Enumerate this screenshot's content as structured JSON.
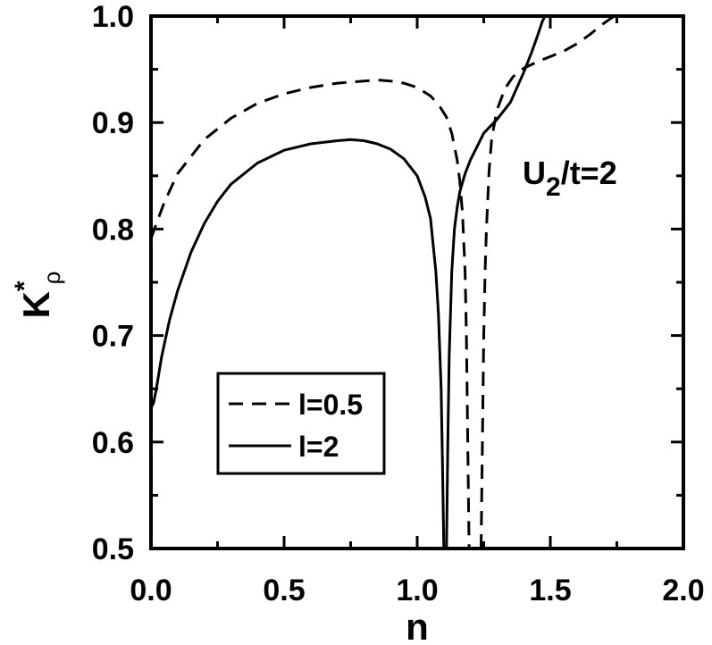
{
  "chart_data": {
    "type": "line",
    "xlabel": "n",
    "ylabel": {
      "main": "K",
      "superscript": "*",
      "subscript": "ρ"
    },
    "xlim": [
      0.0,
      2.0
    ],
    "ylim": [
      0.5,
      1.0
    ],
    "xticks": [
      "0.0",
      "0.5",
      "1.0",
      "1.5",
      "2.0"
    ],
    "yticks": [
      "0.5",
      "0.6",
      "0.7",
      "0.8",
      "0.9",
      "1.0"
    ],
    "xtick_values": [
      0.0,
      0.5,
      1.0,
      1.5,
      2.0
    ],
    "ytick_values": [
      0.5,
      0.6,
      0.7,
      0.8,
      0.9,
      1.0
    ],
    "annotation": {
      "main": "U",
      "subscript": "2",
      "rest": "/t=2"
    },
    "legend_position": "lower-left",
    "grid": false,
    "series": [
      {
        "name": "l=0.5",
        "style": "dashed",
        "color": "#000000",
        "segments": [
          {
            "x": [
              0.0,
              0.02,
              0.05,
              0.1,
              0.2,
              0.3,
              0.4,
              0.5,
              0.6,
              0.7,
              0.8,
              0.85,
              0.9,
              0.95,
              1.0,
              1.05,
              1.08,
              1.11,
              1.13,
              1.15,
              1.16,
              1.17,
              1.18,
              1.185,
              1.19,
              1.195
            ],
            "y": [
              0.791,
              0.805,
              0.825,
              0.852,
              0.884,
              0.904,
              0.918,
              0.927,
              0.933,
              0.937,
              0.939,
              0.94,
              0.939,
              0.937,
              0.933,
              0.925,
              0.917,
              0.905,
              0.89,
              0.865,
              0.845,
              0.815,
              0.76,
              0.7,
              0.6,
              0.5
            ]
          },
          {
            "x": [
              1.24,
              1.245,
              1.25,
              1.255,
              1.26,
              1.27,
              1.28,
              1.3,
              1.33,
              1.36,
              1.4,
              1.45,
              1.5,
              1.55,
              1.6,
              1.65,
              1.7,
              1.74
            ],
            "y": [
              0.5,
              0.6,
              0.7,
              0.76,
              0.8,
              0.855,
              0.885,
              0.912,
              0.932,
              0.943,
              0.951,
              0.957,
              0.962,
              0.967,
              0.974,
              0.983,
              0.993,
              1.0
            ]
          }
        ]
      },
      {
        "name": "l=2",
        "style": "solid",
        "color": "#000000",
        "segments": [
          {
            "x": [
              0.0,
              0.01,
              0.02,
              0.04,
              0.07,
              0.1,
              0.15,
              0.2,
              0.25,
              0.3,
              0.4,
              0.5,
              0.6,
              0.7,
              0.75,
              0.8,
              0.85,
              0.9,
              0.95,
              1.0,
              1.03,
              1.05,
              1.07,
              1.08,
              1.09,
              1.095,
              1.1
            ],
            "y": [
              0.632,
              0.637,
              0.65,
              0.68,
              0.715,
              0.742,
              0.778,
              0.805,
              0.826,
              0.842,
              0.862,
              0.874,
              0.88,
              0.883,
              0.884,
              0.883,
              0.88,
              0.875,
              0.866,
              0.85,
              0.83,
              0.81,
              0.76,
              0.72,
              0.65,
              0.58,
              0.5
            ]
          },
          {
            "x": [
              1.11,
              1.115,
              1.12,
              1.13,
              1.14,
              1.15,
              1.16,
              1.18,
              1.2,
              1.22,
              1.25,
              1.3,
              1.35,
              1.4,
              1.43,
              1.45,
              1.47,
              1.48
            ],
            "y": [
              0.5,
              0.6,
              0.68,
              0.76,
              0.8,
              0.82,
              0.835,
              0.852,
              0.865,
              0.875,
              0.89,
              0.903,
              0.919,
              0.947,
              0.966,
              0.98,
              0.995,
              1.0
            ]
          }
        ]
      }
    ]
  }
}
